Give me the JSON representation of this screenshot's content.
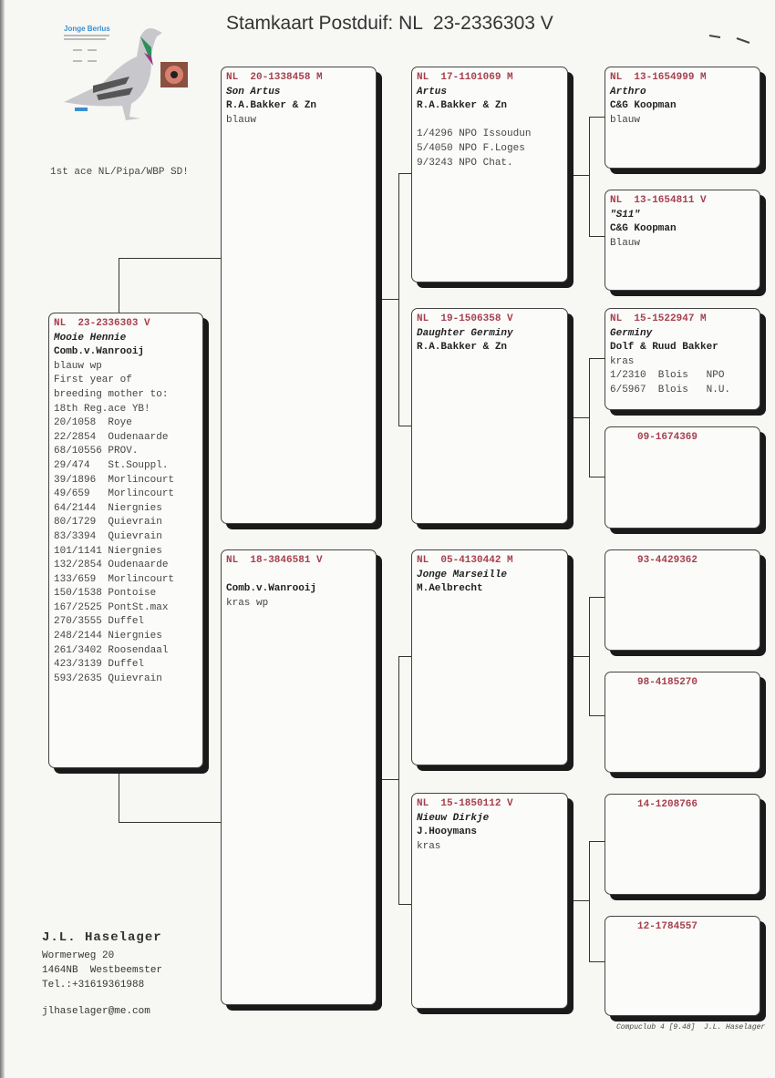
{
  "title": "Stamkaart Postduif: NL  23-2336303 V",
  "logo": {
    "text": "Jonge Berlus"
  },
  "note": "1st ace NL/Pipa/WBP SD!",
  "colors": {
    "ring": "#a6404f",
    "shadow": "#1a1a1a"
  },
  "pedigree": {
    "main": {
      "ring": "NL  23-2336303 V",
      "name": "Mooie Hennie",
      "owner": "Comb.v.Wanrooij",
      "lines": [
        "blauw wp",
        "First year of",
        "breeding mother to:",
        "18th Reg.ace YB!",
        "20/1058  Roye",
        "22/2854  Oudenaarde",
        "68/10556 PROV.",
        "29/474   St.Souppl.",
        "39/1896  Morlincourt",
        "49/659   Morlincourt",
        "64/2144  Niergnies",
        "80/1729  Quievrain",
        "83/3394  Quievrain",
        "101/1141 Niergnies",
        "132/2854 Oudenaarde",
        "133/659  Morlincourt",
        "150/1538 Pontoise",
        "167/2525 PontSt.max",
        "270/3555 Duffel",
        "248/2144 Niergnies",
        "261/3402 Roosendaal",
        "423/3139 Duffel",
        "593/2635 Quievrain"
      ]
    },
    "sire": {
      "ring": "NL  20-1338458 M",
      "name": "Son Artus",
      "owner": "R.A.Bakker & Zn",
      "lines": [
        "blauw"
      ]
    },
    "dam": {
      "ring": "NL  18-3846581 V",
      "name": "",
      "owner": "Comb.v.Wanrooij",
      "lines": [
        "kras wp"
      ]
    },
    "ss": {
      "ring": "NL  17-1101069 M",
      "name": "Artus",
      "owner": "R.A.Bakker & Zn",
      "lines": [
        "",
        "1/4296 NPO Issoudun",
        "5/4050 NPO F.Loges",
        "9/3243 NPO Chat."
      ]
    },
    "sd": {
      "ring": "NL  19-1506358 V",
      "name": "Daughter Germiny",
      "owner": "R.A.Bakker & Zn",
      "lines": []
    },
    "ds": {
      "ring": "NL  05-4130442 M",
      "name": "Jonge Marseille",
      "owner": "M.Aelbrecht",
      "lines": []
    },
    "dd": {
      "ring": "NL  15-1850112 V",
      "name": "Nieuw Dirkje",
      "owner": "J.Hooymans",
      "lines": [
        "kras"
      ]
    },
    "sss": {
      "ring": "NL  13-1654999 M",
      "name": "Arthro",
      "owner": "C&G Koopman",
      "lines": [
        "blauw"
      ]
    },
    "ssd": {
      "ring": "NL  13-1654811 V",
      "name": "\"S11\"",
      "owner": "C&G Koopman",
      "lines": [
        "Blauw"
      ]
    },
    "sds": {
      "ring": "NL  15-1522947 M",
      "name": "Germiny",
      "owner": "Dolf & Ruud Bakker",
      "lines": [
        "kras",
        "1/2310  Blois   NPO",
        "6/5967  Blois   N.U."
      ]
    },
    "sdd": {
      "ring": "09-1674369",
      "name": "",
      "owner": "",
      "lines": []
    },
    "dss": {
      "ring": "93-4429362",
      "name": "",
      "owner": "",
      "lines": []
    },
    "dsd": {
      "ring": "98-4185270",
      "name": "",
      "owner": "",
      "lines": []
    },
    "dds": {
      "ring": "14-1208766",
      "name": "",
      "owner": "",
      "lines": []
    },
    "ddd": {
      "ring": "12-1784557",
      "name": "",
      "owner": "",
      "lines": []
    }
  },
  "breeder": {
    "name": "J.L. Haselager",
    "street": "Wormerweg 20",
    "city": "1464NB  Westbeemster",
    "phone": "Tel.:+31619361988",
    "email": "jlhaselager@me.com"
  },
  "footer": "Compuclub 4 [9.48]  J.L. Haselager"
}
